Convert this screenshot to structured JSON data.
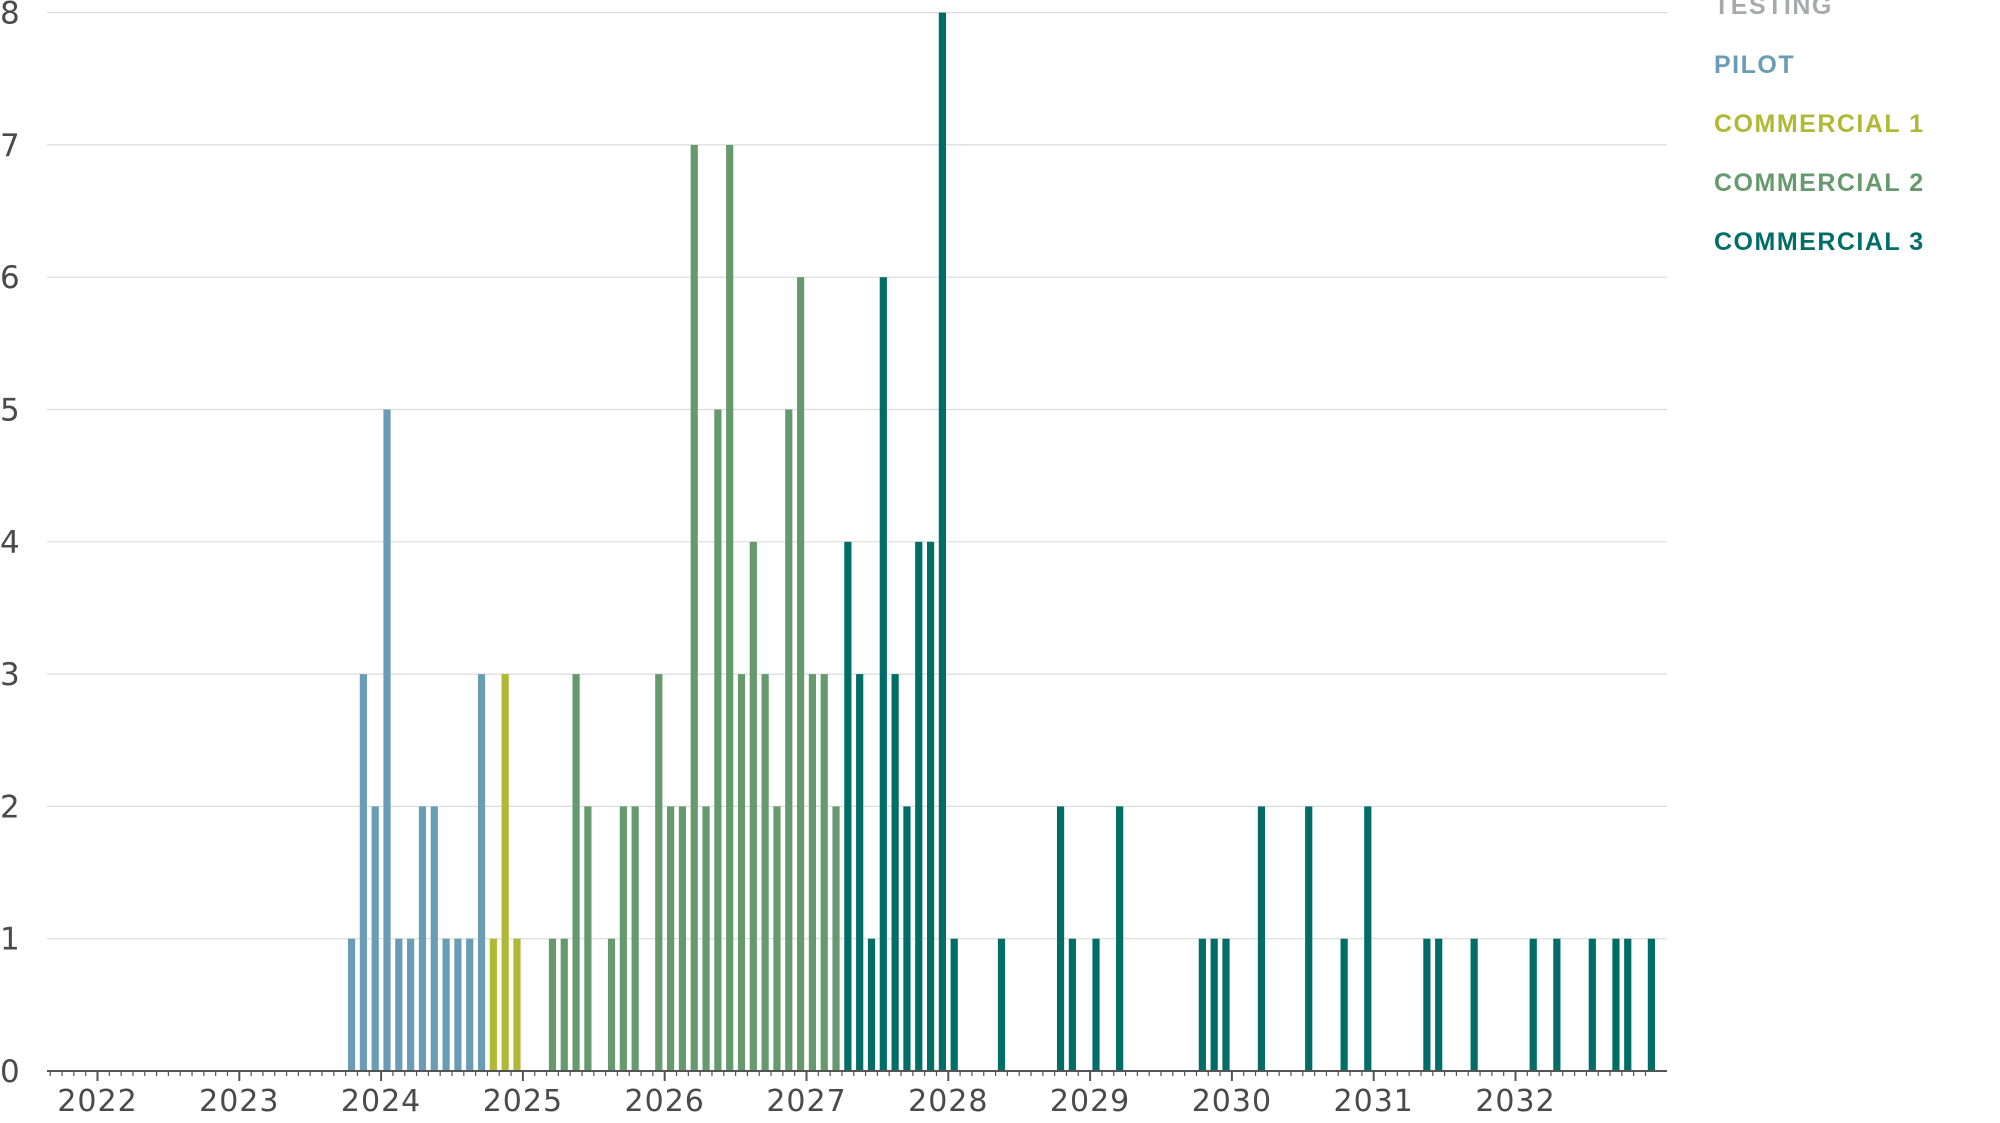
{
  "chart_data": {
    "type": "bar",
    "title": "",
    "xlabel": "",
    "ylabel": "",
    "x_unit": "month",
    "xlim": [
      "2021-09",
      "2033-01"
    ],
    "ylim": [
      0,
      8
    ],
    "y_ticks": [
      "0",
      "1",
      "2",
      "3",
      "4",
      "5",
      "6",
      "7",
      "8"
    ],
    "x_ticks": [
      "2022",
      "2023",
      "2024",
      "2025",
      "2026",
      "2027",
      "2028",
      "2029",
      "2030",
      "2031",
      "2032"
    ],
    "grid": "horizontal",
    "stacked": false,
    "legend_position": "top-right",
    "series": [
      {
        "name": "TESTING",
        "color": "#a7a9ac",
        "points": []
      },
      {
        "name": "PILOT",
        "color": "#6a9db5",
        "points": [
          [
            "2023-10",
            1
          ],
          [
            "2023-11",
            3
          ],
          [
            "2023-12",
            2
          ],
          [
            "2024-01",
            5
          ],
          [
            "2024-02",
            1
          ],
          [
            "2024-03",
            1
          ],
          [
            "2024-04",
            2
          ],
          [
            "2024-05",
            2
          ],
          [
            "2024-06",
            1
          ],
          [
            "2024-07",
            1
          ],
          [
            "2024-08",
            1
          ],
          [
            "2024-09",
            3
          ]
        ]
      },
      {
        "name": "COMMERCIAL 1",
        "color": "#b0b935",
        "points": [
          [
            "2024-10",
            1
          ],
          [
            "2024-11",
            3
          ],
          [
            "2024-12",
            1
          ]
        ]
      },
      {
        "name": "COMMERCIAL 2",
        "color": "#669a6e",
        "points": [
          [
            "2025-03",
            1
          ],
          [
            "2025-04",
            1
          ],
          [
            "2025-05",
            3
          ],
          [
            "2025-06",
            2
          ],
          [
            "2025-08",
            1
          ],
          [
            "2025-09",
            2
          ],
          [
            "2025-10",
            2
          ],
          [
            "2025-12",
            3
          ],
          [
            "2026-01",
            2
          ],
          [
            "2026-02",
            2
          ],
          [
            "2026-03",
            7
          ],
          [
            "2026-04",
            2
          ],
          [
            "2026-05",
            5
          ],
          [
            "2026-06",
            7
          ],
          [
            "2026-07",
            3
          ],
          [
            "2026-08",
            4
          ],
          [
            "2026-09",
            3
          ],
          [
            "2026-10",
            2
          ],
          [
            "2026-11",
            5
          ],
          [
            "2026-12",
            6
          ],
          [
            "2027-01",
            3
          ],
          [
            "2027-02",
            3
          ],
          [
            "2027-03",
            2
          ]
        ]
      },
      {
        "name": "COMMERCIAL 3",
        "color": "#006e66",
        "points": [
          [
            "2027-04",
            4
          ],
          [
            "2027-05",
            3
          ],
          [
            "2027-06",
            1
          ],
          [
            "2027-07",
            6
          ],
          [
            "2027-08",
            3
          ],
          [
            "2027-09",
            2
          ],
          [
            "2027-10",
            4
          ],
          [
            "2027-11",
            4
          ],
          [
            "2027-12",
            8
          ],
          [
            "2028-01",
            1
          ],
          [
            "2028-05",
            1
          ],
          [
            "2028-10",
            2
          ],
          [
            "2028-11",
            1
          ],
          [
            "2029-01",
            1
          ],
          [
            "2029-03",
            2
          ],
          [
            "2029-10",
            1
          ],
          [
            "2029-11",
            1
          ],
          [
            "2029-12",
            1
          ],
          [
            "2030-03",
            2
          ],
          [
            "2030-07",
            2
          ],
          [
            "2030-10",
            1
          ],
          [
            "2030-12",
            2
          ],
          [
            "2031-05",
            1
          ],
          [
            "2031-06",
            1
          ],
          [
            "2031-09",
            1
          ],
          [
            "2032-02",
            1
          ],
          [
            "2032-04",
            1
          ],
          [
            "2032-07",
            1
          ],
          [
            "2032-09",
            1
          ],
          [
            "2032-10",
            1
          ],
          [
            "2032-12",
            1
          ]
        ]
      }
    ]
  }
}
